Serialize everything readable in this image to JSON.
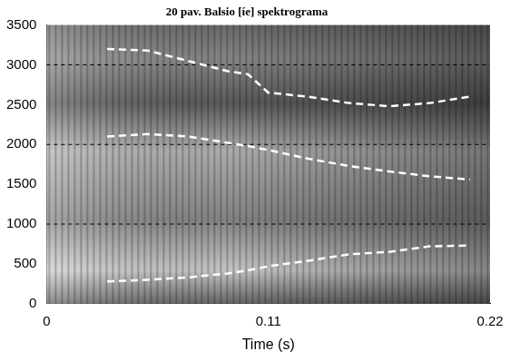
{
  "chart_data": {
    "type": "line",
    "title": "20 pav. Balsio [íe] spektrograma",
    "x_label": "Time (s)",
    "x": [
      0.03,
      0.05,
      0.07,
      0.09,
      0.1,
      0.11,
      0.13,
      0.15,
      0.17,
      0.19,
      0.21
    ],
    "series": [
      {
        "color": "#ffffff",
        "line_style": "dashed",
        "values": [
          280,
          300,
          330,
          380,
          420,
          470,
          540,
          620,
          650,
          720,
          730
        ]
      },
      {
        "color": "#ffffff",
        "line_style": "dashed",
        "values": [
          2100,
          2130,
          2100,
          2020,
          1980,
          1930,
          1820,
          1730,
          1660,
          1600,
          1560
        ]
      },
      {
        "color": "#ffffff",
        "line_style": "dashed",
        "values": [
          3200,
          3180,
          3050,
          2920,
          2880,
          2650,
          2600,
          2520,
          2480,
          2520,
          2600
        ]
      }
    ],
    "xlim": [
      0,
      0.22
    ],
    "xticks": [
      0,
      0.11,
      0.22
    ],
    "ylim": [
      0,
      3500
    ],
    "yticks": [
      0,
      500,
      1000,
      1500,
      2000,
      2500,
      3000,
      3500
    ],
    "grid": true
  }
}
